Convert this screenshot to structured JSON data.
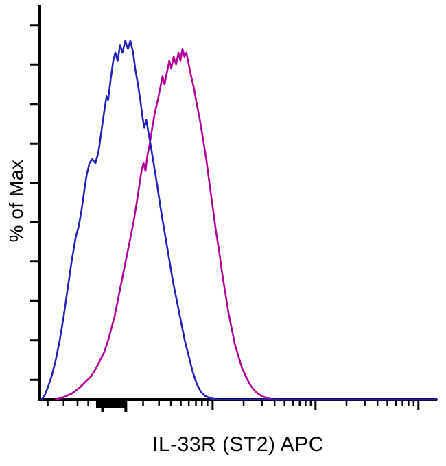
{
  "figure": {
    "type": "flow-cytometry-histogram-overlay"
  },
  "chart_data": {
    "type": "line",
    "title": "",
    "xlabel": "IL-33R (ST2) APC",
    "ylabel": "% of Max",
    "x_scale": "log",
    "ylim": [
      0,
      100
    ],
    "grid": false,
    "legend": "none",
    "x_tick_labels": [],
    "y_tick_labels": [],
    "axis_color": "#000000",
    "y_ticks_pct": [
      95,
      85,
      75,
      65,
      55,
      45,
      35,
      25,
      15,
      5
    ],
    "x_ticks": [
      {
        "f": 0.02,
        "t": "minor"
      },
      {
        "f": 0.06,
        "t": "minor"
      },
      {
        "f": 0.095,
        "t": "minor"
      },
      {
        "f": 0.122,
        "t": "minor"
      },
      {
        "f": 0.145,
        "t": "thick"
      },
      {
        "f": 0.1515,
        "t": "thick"
      },
      {
        "f": 0.158,
        "t": "thickmajor"
      },
      {
        "f": 0.1645,
        "t": "thick"
      },
      {
        "f": 0.171,
        "t": "thick"
      },
      {
        "f": 0.1775,
        "t": "thick"
      },
      {
        "f": 0.184,
        "t": "thick"
      },
      {
        "f": 0.1905,
        "t": "thick"
      },
      {
        "f": 0.197,
        "t": "thick"
      },
      {
        "f": 0.2035,
        "t": "thick"
      },
      {
        "f": 0.21,
        "t": "thick"
      },
      {
        "f": 0.2165,
        "t": "thickmajor"
      },
      {
        "f": 0.26,
        "t": "minor"
      },
      {
        "f": 0.3,
        "t": "minor"
      },
      {
        "f": 0.33,
        "t": "minor"
      },
      {
        "f": 0.355,
        "t": "minor"
      },
      {
        "f": 0.375,
        "t": "minor"
      },
      {
        "f": 0.393,
        "t": "minor"
      },
      {
        "f": 0.408,
        "t": "minor"
      },
      {
        "f": 0.422,
        "t": "minor"
      },
      {
        "f": 0.435,
        "t": "major"
      },
      {
        "f": 0.513,
        "t": "minor"
      },
      {
        "f": 0.559,
        "t": "minor"
      },
      {
        "f": 0.591,
        "t": "minor"
      },
      {
        "f": 0.616,
        "t": "minor"
      },
      {
        "f": 0.637,
        "t": "minor"
      },
      {
        "f": 0.654,
        "t": "minor"
      },
      {
        "f": 0.669,
        "t": "minor"
      },
      {
        "f": 0.682,
        "t": "minor"
      },
      {
        "f": 0.694,
        "t": "major"
      },
      {
        "f": 0.772,
        "t": "minor"
      },
      {
        "f": 0.818,
        "t": "minor"
      },
      {
        "f": 0.85,
        "t": "minor"
      },
      {
        "f": 0.875,
        "t": "minor"
      },
      {
        "f": 0.896,
        "t": "minor"
      },
      {
        "f": 0.913,
        "t": "minor"
      },
      {
        "f": 0.928,
        "t": "minor"
      },
      {
        "f": 0.941,
        "t": "minor"
      },
      {
        "f": 0.953,
        "t": "major"
      }
    ],
    "series": [
      {
        "name": "magenta-curve",
        "color": "#b4009b",
        "points": [
          [
            0.04,
            0
          ],
          [
            0.06,
            0.6
          ],
          [
            0.08,
            1.5
          ],
          [
            0.1,
            3
          ],
          [
            0.115,
            4.5
          ],
          [
            0.13,
            6
          ],
          [
            0.142,
            8
          ],
          [
            0.152,
            10
          ],
          [
            0.162,
            12
          ],
          [
            0.172,
            15
          ],
          [
            0.18,
            18
          ],
          [
            0.188,
            21
          ],
          [
            0.196,
            25
          ],
          [
            0.204,
            29
          ],
          [
            0.212,
            33
          ],
          [
            0.22,
            37
          ],
          [
            0.228,
            41
          ],
          [
            0.236,
            45
          ],
          [
            0.244,
            50
          ],
          [
            0.25,
            54
          ],
          [
            0.256,
            58
          ],
          [
            0.261,
            60
          ],
          [
            0.266,
            58
          ],
          [
            0.271,
            62
          ],
          [
            0.277,
            65
          ],
          [
            0.283,
            69
          ],
          [
            0.29,
            73
          ],
          [
            0.297,
            76
          ],
          [
            0.303,
            79
          ],
          [
            0.309,
            82
          ],
          [
            0.314,
            80
          ],
          [
            0.32,
            83
          ],
          [
            0.326,
            86
          ],
          [
            0.331,
            84
          ],
          [
            0.337,
            87
          ],
          [
            0.343,
            85
          ],
          [
            0.349,
            88
          ],
          [
            0.354,
            86
          ],
          [
            0.359,
            89
          ],
          [
            0.364,
            87
          ],
          [
            0.369,
            88
          ],
          [
            0.375,
            85
          ],
          [
            0.381,
            82
          ],
          [
            0.388,
            79
          ],
          [
            0.395,
            75
          ],
          [
            0.403,
            71
          ],
          [
            0.411,
            66
          ],
          [
            0.419,
            61
          ],
          [
            0.427,
            55
          ],
          [
            0.435,
            49
          ],
          [
            0.443,
            43
          ],
          [
            0.451,
            38
          ],
          [
            0.459,
            32
          ],
          [
            0.467,
            27
          ],
          [
            0.475,
            22
          ],
          [
            0.483,
            18
          ],
          [
            0.491,
            14
          ],
          [
            0.5,
            11
          ],
          [
            0.509,
            8
          ],
          [
            0.518,
            6
          ],
          [
            0.528,
            4
          ],
          [
            0.538,
            2.5
          ],
          [
            0.549,
            1.5
          ],
          [
            0.561,
            0.8
          ],
          [
            0.574,
            0.3
          ],
          [
            0.59,
            0
          ],
          [
            1.0,
            0
          ]
        ]
      },
      {
        "name": "blue-curve",
        "color": "#2222bb",
        "points": [
          [
            0.005,
            0
          ],
          [
            0.012,
            1
          ],
          [
            0.02,
            3
          ],
          [
            0.03,
            6
          ],
          [
            0.04,
            10
          ],
          [
            0.05,
            15
          ],
          [
            0.06,
            21
          ],
          [
            0.07,
            28
          ],
          [
            0.08,
            35
          ],
          [
            0.09,
            41
          ],
          [
            0.098,
            44
          ],
          [
            0.105,
            48
          ],
          [
            0.112,
            53
          ],
          [
            0.118,
            57
          ],
          [
            0.125,
            60
          ],
          [
            0.132,
            61
          ],
          [
            0.14,
            60
          ],
          [
            0.148,
            63
          ],
          [
            0.155,
            68
          ],
          [
            0.162,
            73
          ],
          [
            0.168,
            77
          ],
          [
            0.172,
            76
          ],
          [
            0.178,
            81
          ],
          [
            0.185,
            86
          ],
          [
            0.19,
            88
          ],
          [
            0.196,
            86
          ],
          [
            0.202,
            90
          ],
          [
            0.208,
            88
          ],
          [
            0.215,
            91
          ],
          [
            0.222,
            89
          ],
          [
            0.228,
            91
          ],
          [
            0.235,
            88
          ],
          [
            0.24,
            84
          ],
          [
            0.247,
            80
          ],
          [
            0.253,
            76
          ],
          [
            0.258,
            72
          ],
          [
            0.263,
            69
          ],
          [
            0.268,
            71
          ],
          [
            0.273,
            68
          ],
          [
            0.28,
            64
          ],
          [
            0.288,
            59
          ],
          [
            0.296,
            54
          ],
          [
            0.305,
            48
          ],
          [
            0.315,
            42
          ],
          [
            0.325,
            36
          ],
          [
            0.335,
            30
          ],
          [
            0.345,
            25
          ],
          [
            0.355,
            20
          ],
          [
            0.365,
            15
          ],
          [
            0.375,
            11
          ],
          [
            0.385,
            7
          ],
          [
            0.395,
            4
          ],
          [
            0.405,
            2
          ],
          [
            0.415,
            1
          ],
          [
            0.43,
            0.3
          ],
          [
            0.45,
            0
          ],
          [
            1.0,
            0
          ]
        ]
      }
    ]
  }
}
